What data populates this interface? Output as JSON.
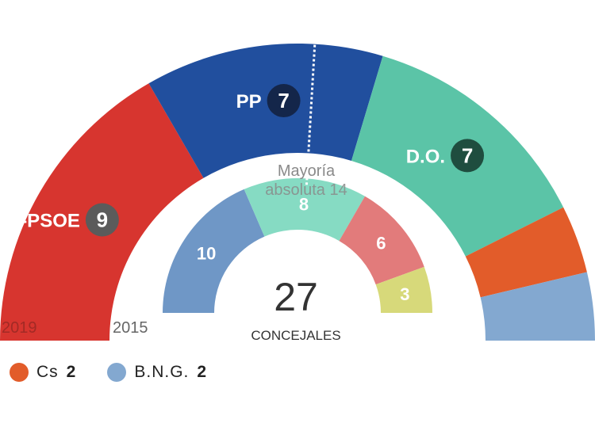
{
  "chart_data": [
    {
      "type": "pie",
      "subtype": "half-donut",
      "label": "2019",
      "total": 27,
      "majority": {
        "label": "Mayoría",
        "sublabel": "absoluta 14",
        "value": 14
      },
      "series": [
        {
          "name": "PSdeG-PSOE",
          "value": 9,
          "color": "#d7352f",
          "badge_color": "#5b5b5b"
        },
        {
          "name": "PP",
          "value": 7,
          "color": "#214f9e",
          "badge_color": "#14264a"
        },
        {
          "name": "D.O.",
          "value": 7,
          "color": "#5bc4a7",
          "badge_color": "#1f4d3f"
        },
        {
          "name": "Cs",
          "value": 2,
          "color": "#e25c2a"
        },
        {
          "name": "B.N.G.",
          "value": 2,
          "color": "#83a8d0"
        }
      ]
    },
    {
      "type": "pie",
      "subtype": "half-donut",
      "label": "2015",
      "total": 27,
      "center_value": "27",
      "center_label": "CONCEJALES",
      "series": [
        {
          "value": 10,
          "color": "#6f97c6"
        },
        {
          "value": 8,
          "color": "#86dbc3"
        },
        {
          "value": 6,
          "color": "#e27b7b"
        },
        {
          "value": 3,
          "color": "#d7d97a"
        }
      ]
    }
  ],
  "legend": [
    {
      "name": "Cs",
      "value": "2",
      "color": "#e25c2a"
    },
    {
      "name": "B.N.G.",
      "value": "2",
      "color": "#83a8d0"
    }
  ]
}
